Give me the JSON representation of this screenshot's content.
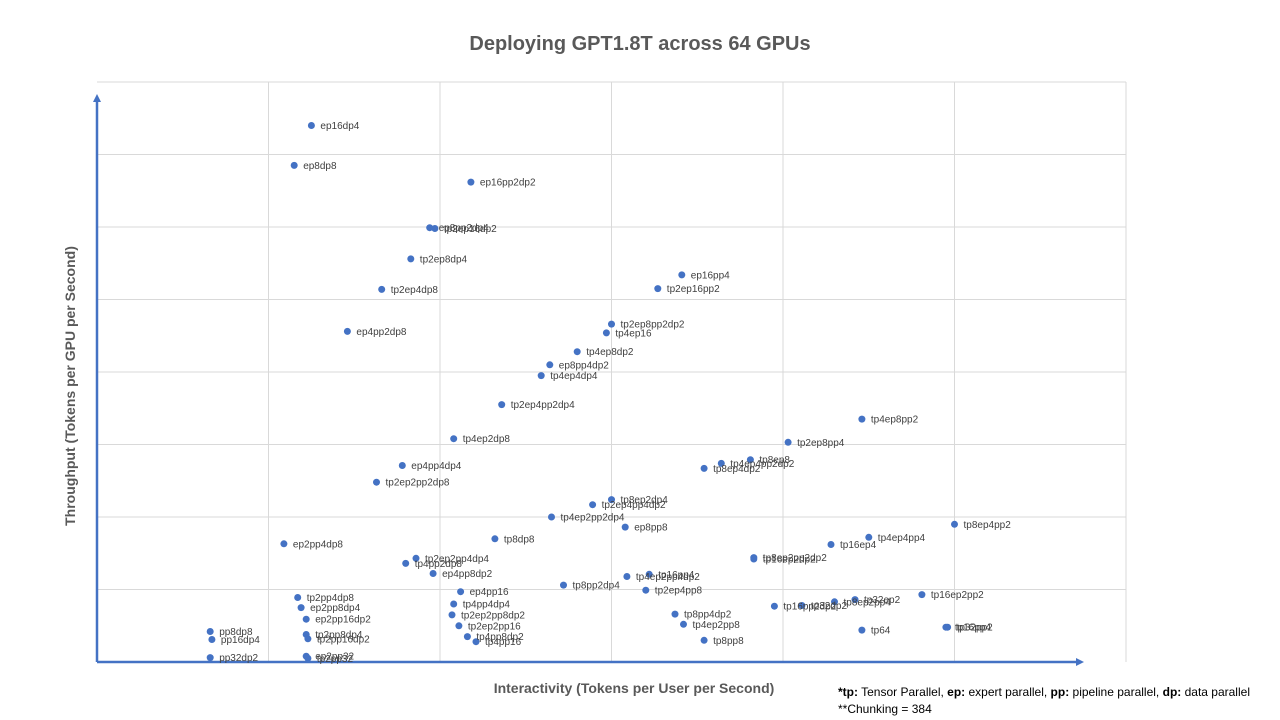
{
  "chart_data": {
    "type": "scatter",
    "title": "Deploying GPT1.8T across 64 GPUs",
    "xlabel": "Interactivity (Tokens per User per Second)",
    "ylabel": "Throughput (Tokens per GPU per Second)",
    "xlim": [
      0,
      60
    ],
    "ylim": [
      0,
      80
    ],
    "grid": true,
    "axis_tick_labels": false,
    "marker_color": "#4472C4",
    "axis_color": "#4472C4",
    "points": [
      {
        "name": "ep16dp4",
        "x": 12.5,
        "y": 74.0
      },
      {
        "name": "ep8dp8",
        "x": 11.5,
        "y": 68.5
      },
      {
        "name": "ep16pp2dp2",
        "x": 21.8,
        "y": 66.2
      },
      {
        "name": "ep8pp2dp4",
        "x": 19.4,
        "y": 59.9
      },
      {
        "name": "tp2ep16dp2",
        "x": 19.7,
        "y": 59.8
      },
      {
        "name": "tp2ep8dp4",
        "x": 18.3,
        "y": 55.6
      },
      {
        "name": "tp2ep4dp8",
        "x": 16.6,
        "y": 51.4
      },
      {
        "name": "ep4pp2dp8",
        "x": 14.6,
        "y": 45.6
      },
      {
        "name": "ep16pp4",
        "x": 34.1,
        "y": 53.4
      },
      {
        "name": "tp2ep16pp2",
        "x": 32.7,
        "y": 51.5
      },
      {
        "name": "tp2ep8pp2dp2",
        "x": 30.0,
        "y": 46.6
      },
      {
        "name": "tp4ep16",
        "x": 29.7,
        "y": 45.4
      },
      {
        "name": "tp4ep8dp2",
        "x": 28.0,
        "y": 42.8
      },
      {
        "name": "ep8pp4dp2",
        "x": 26.4,
        "y": 41.0
      },
      {
        "name": "tp4ep4dp4",
        "x": 25.9,
        "y": 39.5
      },
      {
        "name": "tp2ep4pp2dp4",
        "x": 23.6,
        "y": 35.5
      },
      {
        "name": "tp4ep2dp8",
        "x": 20.8,
        "y": 30.8
      },
      {
        "name": "tp4ep8pp2",
        "x": 44.6,
        "y": 33.5
      },
      {
        "name": "tp2ep8pp4",
        "x": 40.3,
        "y": 30.3
      },
      {
        "name": "tp8ep8",
        "x": 38.1,
        "y": 27.9
      },
      {
        "name": "tp4ep4pp2dp2",
        "x": 36.4,
        "y": 27.4
      },
      {
        "name": "tp8ep4dp2",
        "x": 35.4,
        "y": 26.7
      },
      {
        "name": "ep4pp4dp4",
        "x": 17.8,
        "y": 27.1
      },
      {
        "name": "tp2ep2pp2dp8",
        "x": 16.3,
        "y": 24.8
      },
      {
        "name": "tp8ep2dp4",
        "x": 30.0,
        "y": 22.4
      },
      {
        "name": "tp2ep4pp4dp2",
        "x": 28.9,
        "y": 21.7
      },
      {
        "name": "tp4ep2pp2dp4",
        "x": 26.5,
        "y": 20.0
      },
      {
        "name": "ep8pp8",
        "x": 30.8,
        "y": 18.6
      },
      {
        "name": "tp8ep4pp2",
        "x": 50.0,
        "y": 19.0
      },
      {
        "name": "tp8ep2pp2dp2",
        "x": 38.3,
        "y": 14.4
      },
      {
        "name": "tp16ep4",
        "x": 42.8,
        "y": 16.2
      },
      {
        "name": "tp4ep4pp4",
        "x": 45.0,
        "y": 17.2
      },
      {
        "name": "tp16ep2dp2",
        "x": 38.3,
        "y": 14.2
      },
      {
        "name": "ep2pp4dp8",
        "x": 10.9,
        "y": 16.3
      },
      {
        "name": "tp8dp8",
        "x": 23.2,
        "y": 17.0
      },
      {
        "name": "tp2ep2pp4dp4",
        "x": 18.6,
        "y": 14.3
      },
      {
        "name": "tp4pp2dp8",
        "x": 18.0,
        "y": 13.6
      },
      {
        "name": "ep4pp8dp2",
        "x": 19.6,
        "y": 12.2
      },
      {
        "name": "tp4ep2pp4dp2",
        "x": 30.9,
        "y": 11.8
      },
      {
        "name": "tp16pp4",
        "x": 32.2,
        "y": 12.1
      },
      {
        "name": "tp8pp2dp4",
        "x": 27.2,
        "y": 10.6
      },
      {
        "name": "tp2ep4pp8",
        "x": 32.0,
        "y": 9.9
      },
      {
        "name": "tp2pp4dp8",
        "x": 11.7,
        "y": 8.9
      },
      {
        "name": "ep2pp8dp4",
        "x": 11.9,
        "y": 7.5
      },
      {
        "name": "ep2pp16dp2",
        "x": 12.2,
        "y": 5.9
      },
      {
        "name": "tp2pp8dp4",
        "x": 12.2,
        "y": 3.8
      },
      {
        "name": "tp2pp16dp2",
        "x": 12.3,
        "y": 3.2
      },
      {
        "name": "ep2pp32",
        "x": 12.2,
        "y": 0.8
      },
      {
        "name": "tp2pp32",
        "x": 12.3,
        "y": 0.5
      },
      {
        "name": "pp8dp8",
        "x": 6.6,
        "y": 4.2
      },
      {
        "name": "pp16dp4",
        "x": 6.7,
        "y": 3.1
      },
      {
        "name": "pp32dp2",
        "x": 6.6,
        "y": 0.6
      },
      {
        "name": "ep4pp16",
        "x": 21.2,
        "y": 9.7
      },
      {
        "name": "tp4pp4dp4",
        "x": 20.8,
        "y": 8.0
      },
      {
        "name": "tp2ep2pp8dp2",
        "x": 20.7,
        "y": 6.5
      },
      {
        "name": "tp2ep2pp16",
        "x": 21.1,
        "y": 5.0
      },
      {
        "name": "tp4pp8dp2",
        "x": 21.6,
        "y": 3.5
      },
      {
        "name": "tp4pp16",
        "x": 22.1,
        "y": 2.8
      },
      {
        "name": "tp8pp4dp2",
        "x": 33.7,
        "y": 6.6
      },
      {
        "name": "tp4ep2pp8",
        "x": 34.2,
        "y": 5.2
      },
      {
        "name": "tp8pp8",
        "x": 35.4,
        "y": 3.0
      },
      {
        "name": "tp16pp2dp2",
        "x": 39.5,
        "y": 7.7
      },
      {
        "name": "tp32dp2",
        "x": 41.1,
        "y": 7.8
      },
      {
        "name": "tp8ep2pp4",
        "x": 43.0,
        "y": 8.3
      },
      {
        "name": "tp32ep2",
        "x": 44.2,
        "y": 8.6
      },
      {
        "name": "tp16ep2pp2",
        "x": 48.1,
        "y": 9.3
      },
      {
        "name": "tp64",
        "x": 44.6,
        "y": 4.4
      },
      {
        "name": "tp16pp4",
        "x": 49.5,
        "y": 4.8
      },
      {
        "name": "tp32pp2",
        "x": 49.6,
        "y": 4.8
      }
    ]
  },
  "footnote": {
    "tp_key": "*tp:",
    "tp_text": " Tensor Parallel, ",
    "ep_key": "ep:",
    "ep_text": " expert parallel, ",
    "pp_key": "pp:",
    "pp_text": " pipeline parallel, ",
    "dp_key": "dp:",
    "dp_text": " data parallel",
    "chunking": "**Chunking  = 384"
  }
}
